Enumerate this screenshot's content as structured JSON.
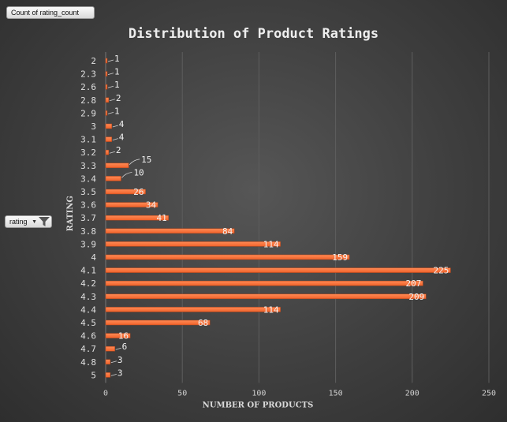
{
  "field_button": {
    "label": "Count of rating_count"
  },
  "filter_button": {
    "label": "rating",
    "icon": "filter-icon",
    "dropdown_icon": "dropdown-icon"
  },
  "chart_data": {
    "type": "bar",
    "orientation": "horizontal",
    "title": "Distribution of Product Ratings",
    "xlabel": "NUMBER OF PRODUCTS",
    "ylabel": "RATING",
    "categories": [
      "2",
      "2.3",
      "2.6",
      "2.8",
      "2.9",
      "3",
      "3.1",
      "3.2",
      "3.3",
      "3.4",
      "3.5",
      "3.6",
      "3.7",
      "3.8",
      "3.9",
      "4",
      "4.1",
      "4.2",
      "4.3",
      "4.4",
      "4.5",
      "4.6",
      "4.7",
      "4.8",
      "5"
    ],
    "values": [
      1,
      1,
      1,
      2,
      1,
      4,
      4,
      2,
      15,
      10,
      26,
      34,
      41,
      84,
      114,
      159,
      225,
      207,
      209,
      114,
      68,
      16,
      6,
      3,
      3
    ],
    "xlim": [
      0,
      250
    ],
    "xticks": [
      0,
      50,
      100,
      150,
      200,
      250
    ],
    "grid": "vertical",
    "legend": "none",
    "data_labels": true,
    "bar_color": "#f0622a"
  }
}
